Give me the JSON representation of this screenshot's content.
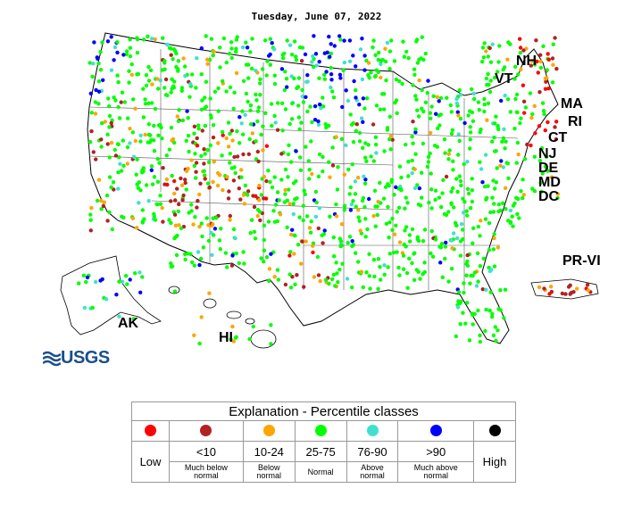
{
  "map": {
    "date": "Tuesday, June 07, 2022",
    "labels": {
      "nh": "NH",
      "vt": "VT",
      "ma": "MA",
      "ri": "RI",
      "ct": "CT",
      "nj": "NJ",
      "de": "DE",
      "md": "MD",
      "dc": "DC",
      "prvi": "PR-VI",
      "ak": "AK",
      "hi": "HI"
    },
    "logo": "USGS"
  },
  "legend": {
    "title": "Explanation - Percentile classes",
    "classes": [
      {
        "color": "#ff0000",
        "range": "Low",
        "description": ""
      },
      {
        "color": "#b22222",
        "range": "<10",
        "description": "Much below normal"
      },
      {
        "color": "#ffa500",
        "range": "10-24",
        "description": "Below normal"
      },
      {
        "color": "#00ff00",
        "range": "25-75",
        "description": "Normal"
      },
      {
        "color": "#40e0d0",
        "range": "76-90",
        "description": "Above normal"
      },
      {
        "color": "#0000ff",
        "range": ">90",
        "description": "Much above normal"
      },
      {
        "color": "#000000",
        "range": "High",
        "description": ""
      }
    ],
    "low": "Low",
    "high": "High",
    "r1": "<10",
    "d1a": "Much below",
    "d1b": "normal",
    "r2": "10-24",
    "d2a": "Below",
    "d2b": "normal",
    "r3": "25-75",
    "d3": "Normal",
    "r4": "76-90",
    "d4a": "Above",
    "d4b": "normal",
    "r5": ">90",
    "d5a": "Much above",
    "d5b": "normal"
  }
}
